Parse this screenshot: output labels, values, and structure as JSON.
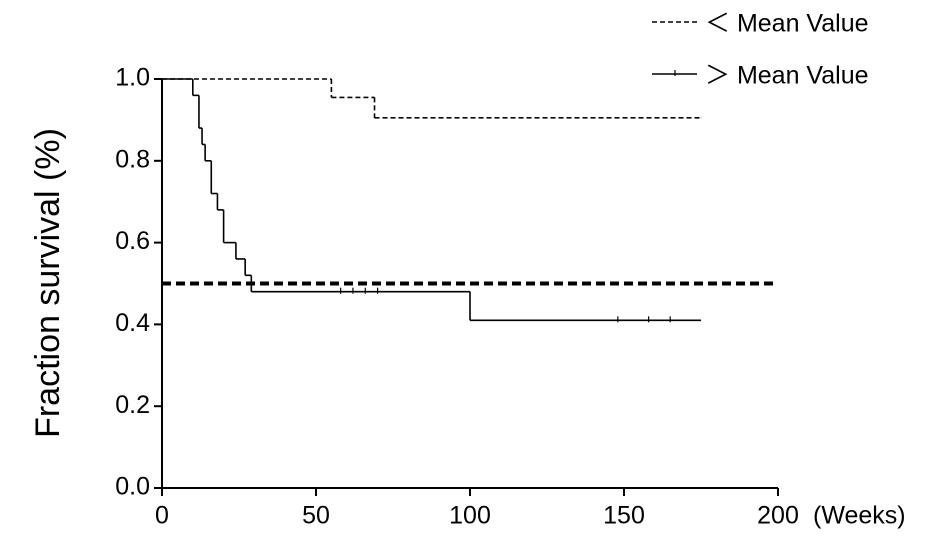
{
  "chart_data": {
    "type": "step",
    "y_label": "Fraction survival (%)",
    "x_label": "(Weeks)",
    "xlim": [
      0,
      200
    ],
    "xticks": [
      0,
      50,
      100,
      150,
      200
    ],
    "ylim": [
      0,
      1
    ],
    "yticks": [
      {
        "value": 0,
        "label": "0.0"
      },
      0.2,
      0.4,
      0.6,
      0.8,
      {
        "value": 1,
        "label": "1.0"
      }
    ],
    "reference_line": 0.5,
    "series": [
      {
        "name": "＜ Mean Value",
        "color": "#000000",
        "dash": "dashed",
        "x": [
          0,
          55,
          69,
          175
        ],
        "values": [
          1.0,
          0.955,
          0.905,
          0.905
        ],
        "censored": []
      },
      {
        "name": "＞ Mean Value",
        "color": "#000000",
        "dash": "solid",
        "x": [
          0,
          10,
          12,
          13,
          14,
          16,
          18,
          20,
          24,
          27,
          29,
          100,
          175
        ],
        "values": [
          1.0,
          0.96,
          0.88,
          0.84,
          0.8,
          0.72,
          0.68,
          0.6,
          0.56,
          0.52,
          0.48,
          0.41,
          0.41
        ],
        "censored": [
          58,
          62,
          66,
          70,
          148,
          158,
          165
        ]
      }
    ]
  }
}
